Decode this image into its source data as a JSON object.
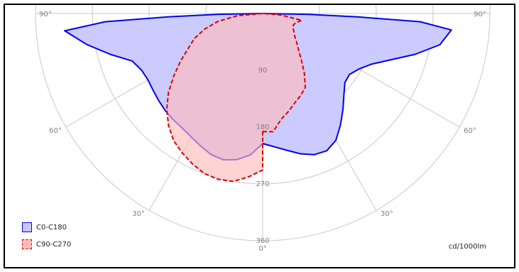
{
  "chart_data": {
    "type": "polar",
    "unit_label": "cd/1000lm",
    "radial_ticks": [
      "90",
      "180",
      "270",
      "360"
    ],
    "radial_max": 360,
    "angle_ticks": [
      {
        "side": "left",
        "angle": 90,
        "label": "90°"
      },
      {
        "side": "right",
        "angle": 90,
        "label": "90°"
      },
      {
        "side": "left",
        "angle": 60,
        "label": "60°"
      },
      {
        "side": "right",
        "angle": 60,
        "label": "60°"
      },
      {
        "side": "left",
        "angle": 30,
        "label": "30°"
      },
      {
        "side": "right",
        "angle": 30,
        "label": "30°"
      },
      {
        "side": "center",
        "angle": 0,
        "label": "0°"
      }
    ],
    "series": [
      {
        "name": "C0-C180",
        "stroke": "#0000ee",
        "fill": "#c8c8ff",
        "dash": false,
        "right_side": [
          [
            0,
            206
          ],
          [
            5,
            212
          ],
          [
            10,
            220
          ],
          [
            15,
            230
          ],
          [
            20,
            238
          ],
          [
            25,
            240
          ],
          [
            30,
            232
          ],
          [
            35,
            215
          ],
          [
            40,
            198
          ],
          [
            45,
            182
          ],
          [
            50,
            170
          ],
          [
            55,
            168
          ],
          [
            60,
            176
          ],
          [
            65,
            190
          ],
          [
            70,
            215
          ],
          [
            75,
            250
          ],
          [
            80,
            285
          ],
          [
            85,
            300
          ],
          [
            87,
            250
          ],
          [
            88,
            150
          ],
          [
            89,
            70
          ],
          [
            90,
            0
          ]
        ],
        "left_side": [
          [
            0,
            206
          ],
          [
            5,
            225
          ],
          [
            10,
            235
          ],
          [
            15,
            240
          ],
          [
            20,
            238
          ],
          [
            25,
            232
          ],
          [
            30,
            226
          ],
          [
            35,
            222
          ],
          [
            40,
            220
          ],
          [
            45,
            218
          ],
          [
            50,
            215
          ],
          [
            55,
            212
          ],
          [
            60,
            210
          ],
          [
            65,
            212
          ],
          [
            70,
            220
          ],
          [
            75,
            250
          ],
          [
            80,
            283
          ],
          [
            85,
            315
          ],
          [
            87,
            250
          ],
          [
            88,
            150
          ],
          [
            89,
            70
          ],
          [
            90,
            0
          ]
        ]
      },
      {
        "name": "C90-C270",
        "stroke": "#dd0000",
        "fill": "#ffbbbb",
        "dash": true,
        "right_side": [
          [
            0,
            187
          ],
          [
            5,
            188
          ],
          [
            10,
            170
          ],
          [
            15,
            160
          ],
          [
            20,
            150
          ],
          [
            25,
            143
          ],
          [
            30,
            135
          ],
          [
            35,
            115
          ],
          [
            40,
            95
          ],
          [
            45,
            80
          ],
          [
            50,
            70
          ],
          [
            55,
            62
          ],
          [
            60,
            57
          ],
          [
            65,
            53
          ],
          [
            70,
            52
          ],
          [
            75,
            55
          ],
          [
            80,
            63
          ],
          [
            85,
            30
          ],
          [
            90,
            0
          ]
        ],
        "left_side": [
          [
            0,
            248
          ],
          [
            5,
            260
          ],
          [
            10,
            270
          ],
          [
            15,
            272
          ],
          [
            20,
            270
          ],
          [
            25,
            263
          ],
          [
            30,
            255
          ],
          [
            35,
            246
          ],
          [
            40,
            232
          ],
          [
            45,
            215
          ],
          [
            50,
            195
          ],
          [
            55,
            172
          ],
          [
            60,
            150
          ],
          [
            65,
            130
          ],
          [
            70,
            115
          ],
          [
            75,
            95
          ],
          [
            80,
            72
          ],
          [
            85,
            40
          ],
          [
            90,
            0
          ]
        ]
      }
    ],
    "legend": {
      "placement": "bottom-left"
    }
  }
}
